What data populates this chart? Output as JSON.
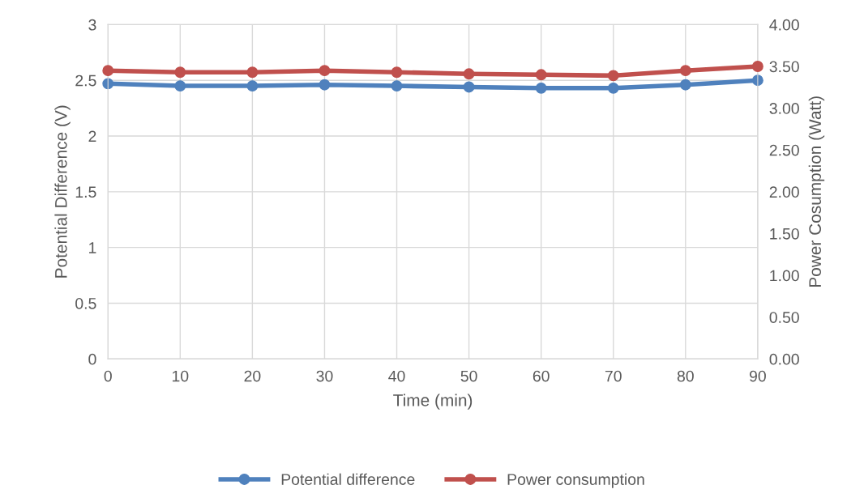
{
  "chart_data": {
    "type": "line",
    "xlabel": "Time (min)",
    "ylabel": "Potential Difference (V)",
    "y2label": "Power Cosumption (Watt)",
    "x": [
      0,
      10,
      20,
      30,
      40,
      50,
      60,
      70,
      80,
      90
    ],
    "series": [
      {
        "name": "Potential difference",
        "color": "#4f81bd",
        "values": [
          2.47,
          2.45,
          2.45,
          2.46,
          2.45,
          2.44,
          2.43,
          2.43,
          2.46,
          2.5
        ]
      },
      {
        "name": "Power consumption",
        "color": "#c0504d",
        "axis": "y2",
        "values": [
          3.45,
          3.43,
          3.43,
          3.45,
          3.43,
          3.41,
          3.4,
          3.39,
          3.45,
          3.5
        ]
      }
    ],
    "xlim": [
      0,
      90
    ],
    "xticks": [
      0,
      10,
      20,
      30,
      40,
      50,
      60,
      70,
      80,
      90
    ],
    "ylim": [
      0,
      3
    ],
    "yticks": [
      0,
      0.5,
      1,
      1.5,
      2,
      2.5,
      3
    ],
    "y2lim": [
      0,
      4
    ],
    "y2ticks": [
      {
        "value": 0,
        "label": "0.00"
      },
      {
        "value": 0.5,
        "label": "0.50"
      },
      {
        "value": 1,
        "label": "1.00"
      },
      {
        "value": 1.5,
        "label": "1.50"
      },
      {
        "value": 2,
        "label": "2.00"
      },
      {
        "value": 2.5,
        "label": "2.50"
      },
      {
        "value": 3,
        "label": "3.00"
      },
      {
        "value": 3.5,
        "label": "3.50"
      },
      {
        "value": 4,
        "label": "4.00"
      }
    ],
    "grid": true,
    "legend": "bottom",
    "marker": "circle",
    "line_style": "solid"
  }
}
